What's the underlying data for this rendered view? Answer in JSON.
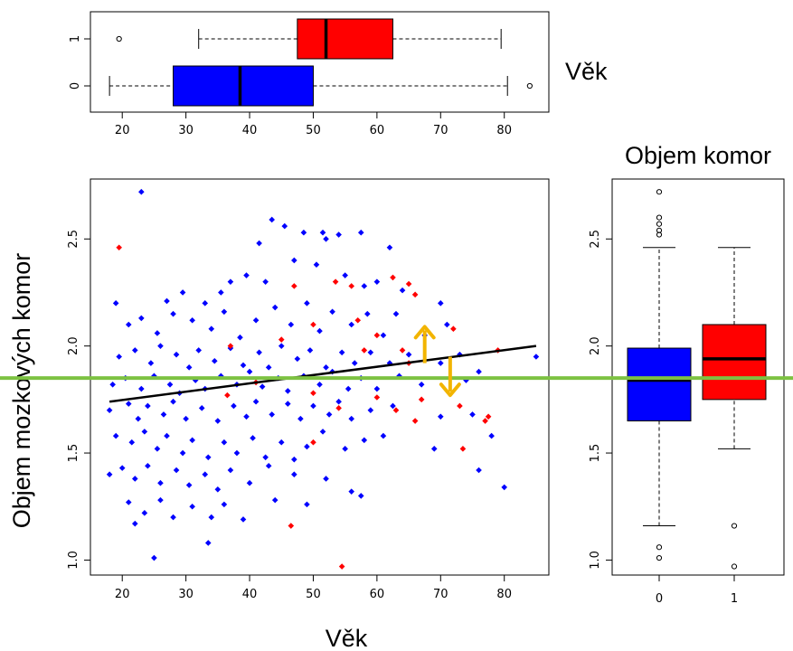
{
  "chart_data": [
    {
      "type": "box",
      "orientation": "horizontal",
      "title": "Věk",
      "categories": [
        "0",
        "1"
      ],
      "xticks": [
        "20",
        "30",
        "40",
        "50",
        "60",
        "70",
        "80"
      ],
      "xlim": [
        15,
        87
      ],
      "boxes": [
        {
          "group": "0",
          "color": "#0000ff",
          "whisker_low": 18,
          "q1": 28,
          "median": 38.5,
          "q3": 50,
          "whisker_high": 80.5,
          "outliers": [
            84
          ]
        },
        {
          "group": "1",
          "color": "#ff0000",
          "whisker_low": 32,
          "q1": 47.5,
          "median": 52,
          "q3": 62.5,
          "whisker_high": 79.5,
          "outliers": [
            19.5
          ]
        }
      ]
    },
    {
      "type": "scatter",
      "xlabel": "Věk",
      "ylabel": "Objem mozkových komor",
      "xticks": [
        "20",
        "30",
        "40",
        "50",
        "60",
        "70",
        "80"
      ],
      "yticks": [
        "1.0",
        "1.5",
        "2.0",
        "2.5"
      ],
      "xlim": [
        15,
        87
      ],
      "ylim": [
        0.93,
        2.78
      ],
      "series": [
        {
          "color": "#0000ff",
          "points": [
            [
              23,
              2.72
            ],
            [
              43.5,
              2.59
            ],
            [
              45.5,
              2.56
            ],
            [
              48.5,
              2.53
            ],
            [
              51.5,
              2.53
            ],
            [
              52,
              2.5
            ],
            [
              54,
              2.52
            ],
            [
              57.5,
              2.53
            ],
            [
              41.5,
              2.48
            ],
            [
              62,
              2.46
            ],
            [
              19,
              2.2
            ],
            [
              27,
              2.21
            ],
            [
              29.5,
              2.25
            ],
            [
              33,
              2.2
            ],
            [
              35.5,
              2.25
            ],
            [
              37,
              2.3
            ],
            [
              39.5,
              2.33
            ],
            [
              42.5,
              2.3
            ],
            [
              47,
              2.4
            ],
            [
              50.5,
              2.38
            ],
            [
              55,
              2.33
            ],
            [
              58,
              2.28
            ],
            [
              60,
              2.3
            ],
            [
              64,
              2.26
            ],
            [
              70,
              2.2
            ],
            [
              21,
              2.1
            ],
            [
              23,
              2.13
            ],
            [
              25.5,
              2.06
            ],
            [
              28,
              2.15
            ],
            [
              31,
              2.12
            ],
            [
              34,
              2.08
            ],
            [
              36,
              2.16
            ],
            [
              38.5,
              2.04
            ],
            [
              41,
              2.12
            ],
            [
              44,
              2.18
            ],
            [
              46.5,
              2.1
            ],
            [
              49,
              2.2
            ],
            [
              51,
              2.07
            ],
            [
              53,
              2.16
            ],
            [
              56,
              2.1
            ],
            [
              58.5,
              2.15
            ],
            [
              61,
              2.05
            ],
            [
              63,
              2.15
            ],
            [
              67.5,
              2.05
            ],
            [
              71,
              2.1
            ],
            [
              19.5,
              1.95
            ],
            [
              22,
              1.98
            ],
            [
              24.5,
              1.92
            ],
            [
              26,
              2.0
            ],
            [
              28.5,
              1.96
            ],
            [
              30.5,
              1.9
            ],
            [
              32,
              1.98
            ],
            [
              34.5,
              1.93
            ],
            [
              37,
              1.99
            ],
            [
              39,
              1.91
            ],
            [
              41.5,
              1.97
            ],
            [
              43,
              1.9
            ],
            [
              45,
              2.0
            ],
            [
              47.5,
              1.94
            ],
            [
              49.5,
              1.98
            ],
            [
              52,
              1.9
            ],
            [
              54.5,
              1.97
            ],
            [
              56.5,
              1.92
            ],
            [
              59,
              1.97
            ],
            [
              62,
              1.92
            ],
            [
              65,
              1.96
            ],
            [
              70,
              1.92
            ],
            [
              73,
              1.96
            ],
            [
              76,
              1.88
            ],
            [
              85,
              1.95
            ],
            [
              18.5,
              1.82
            ],
            [
              20.5,
              1.85
            ],
            [
              23,
              1.8
            ],
            [
              25,
              1.86
            ],
            [
              27.5,
              1.82
            ],
            [
              29,
              1.78
            ],
            [
              31.5,
              1.84
            ],
            [
              33,
              1.8
            ],
            [
              35.5,
              1.86
            ],
            [
              38,
              1.82
            ],
            [
              40,
              1.88
            ],
            [
              42,
              1.81
            ],
            [
              44.5,
              1.85
            ],
            [
              46,
              1.79
            ],
            [
              48.5,
              1.86
            ],
            [
              51,
              1.82
            ],
            [
              53,
              1.88
            ],
            [
              55.5,
              1.8
            ],
            [
              57.5,
              1.85
            ],
            [
              60,
              1.8
            ],
            [
              63.5,
              1.86
            ],
            [
              67,
              1.82
            ],
            [
              74,
              1.84
            ],
            [
              18,
              1.7
            ],
            [
              21,
              1.73
            ],
            [
              22.5,
              1.66
            ],
            [
              24,
              1.72
            ],
            [
              26.5,
              1.68
            ],
            [
              28,
              1.74
            ],
            [
              30,
              1.66
            ],
            [
              32.5,
              1.71
            ],
            [
              35,
              1.65
            ],
            [
              37.5,
              1.72
            ],
            [
              39.5,
              1.67
            ],
            [
              41,
              1.74
            ],
            [
              43.5,
              1.68
            ],
            [
              46,
              1.73
            ],
            [
              48,
              1.66
            ],
            [
              50,
              1.72
            ],
            [
              52.5,
              1.68
            ],
            [
              54,
              1.74
            ],
            [
              56,
              1.66
            ],
            [
              59,
              1.7
            ],
            [
              62.5,
              1.72
            ],
            [
              70,
              1.67
            ],
            [
              75,
              1.68
            ],
            [
              78,
              1.58
            ],
            [
              19,
              1.58
            ],
            [
              21.5,
              1.55
            ],
            [
              23.5,
              1.6
            ],
            [
              25.5,
              1.52
            ],
            [
              27,
              1.58
            ],
            [
              29.5,
              1.5
            ],
            [
              31,
              1.56
            ],
            [
              33.5,
              1.48
            ],
            [
              36,
              1.55
            ],
            [
              38,
              1.5
            ],
            [
              40.5,
              1.57
            ],
            [
              42.5,
              1.48
            ],
            [
              45,
              1.55
            ],
            [
              47,
              1.47
            ],
            [
              49,
              1.53
            ],
            [
              51.5,
              1.6
            ],
            [
              55,
              1.52
            ],
            [
              58,
              1.56
            ],
            [
              61,
              1.58
            ],
            [
              69,
              1.52
            ],
            [
              18,
              1.4
            ],
            [
              20,
              1.43
            ],
            [
              22,
              1.38
            ],
            [
              24,
              1.44
            ],
            [
              26,
              1.36
            ],
            [
              28.5,
              1.42
            ],
            [
              30.5,
              1.35
            ],
            [
              33,
              1.4
            ],
            [
              35,
              1.33
            ],
            [
              37,
              1.42
            ],
            [
              40,
              1.36
            ],
            [
              43,
              1.44
            ],
            [
              47,
              1.4
            ],
            [
              52,
              1.38
            ],
            [
              56,
              1.32
            ],
            [
              76,
              1.42
            ],
            [
              21,
              1.27
            ],
            [
              23.5,
              1.22
            ],
            [
              26,
              1.28
            ],
            [
              28,
              1.2
            ],
            [
              31,
              1.25
            ],
            [
              34,
              1.2
            ],
            [
              36,
              1.26
            ],
            [
              39,
              1.19
            ],
            [
              44,
              1.28
            ],
            [
              49,
              1.26
            ],
            [
              57.5,
              1.3
            ],
            [
              80,
              1.34
            ],
            [
              25,
              1.01
            ],
            [
              33.5,
              1.08
            ],
            [
              22,
              1.17
            ]
          ]
        },
        {
          "color": "#ff0000",
          "points": [
            [
              19.5,
              2.46
            ],
            [
              47,
              2.28
            ],
            [
              53.5,
              2.3
            ],
            [
              56,
              2.28
            ],
            [
              62.5,
              2.32
            ],
            [
              65,
              2.29
            ],
            [
              66,
              2.24
            ],
            [
              50,
              2.1
            ],
            [
              57,
              2.12
            ],
            [
              60,
              2.05
            ],
            [
              45,
              2.03
            ],
            [
              37,
              2.0
            ],
            [
              72,
              2.08
            ],
            [
              58,
              1.98
            ],
            [
              64,
              1.98
            ],
            [
              79,
              1.98
            ],
            [
              65,
              1.92
            ],
            [
              41,
              1.83
            ],
            [
              50,
              1.78
            ],
            [
              60,
              1.76
            ],
            [
              67,
              1.75
            ],
            [
              36.5,
              1.77
            ],
            [
              54,
              1.71
            ],
            [
              73,
              1.72
            ],
            [
              63,
              1.7
            ],
            [
              66,
              1.65
            ],
            [
              77,
              1.65
            ],
            [
              77.5,
              1.67
            ],
            [
              50,
              1.55
            ],
            [
              73.5,
              1.52
            ],
            [
              46.5,
              1.16
            ],
            [
              54.5,
              0.97
            ]
          ]
        }
      ],
      "annotations": [
        {
          "type": "regression-line",
          "color": "#000000",
          "from": [
            18,
            1.74
          ],
          "to": [
            85,
            2.0
          ]
        },
        {
          "type": "reference-line",
          "color": "#7dc242",
          "y": 1.85
        },
        {
          "type": "arrow-up",
          "color": "#f2b400",
          "x": 67.5
        },
        {
          "type": "arrow-down",
          "color": "#f2b400",
          "x": 71.5
        }
      ]
    },
    {
      "type": "box",
      "orientation": "vertical",
      "title": "Objem komor",
      "categories": [
        "0",
        "1"
      ],
      "yticks": [
        "1.0",
        "1.5",
        "2.0",
        "2.5"
      ],
      "ylim": [
        0.93,
        2.78
      ],
      "boxes": [
        {
          "group": "0",
          "color": "#0000ff",
          "whisker_low": 1.16,
          "q1": 1.65,
          "median": 1.84,
          "q3": 1.99,
          "whisker_high": 2.46,
          "outliers": [
            1.01,
            1.06,
            2.52,
            2.54,
            2.57,
            2.6,
            2.72
          ]
        },
        {
          "group": "1",
          "color": "#ff0000",
          "whisker_low": 1.52,
          "q1": 1.75,
          "median": 1.94,
          "q3": 2.1,
          "whisker_high": 2.46,
          "outliers": [
            0.97,
            1.16
          ]
        }
      ]
    }
  ]
}
